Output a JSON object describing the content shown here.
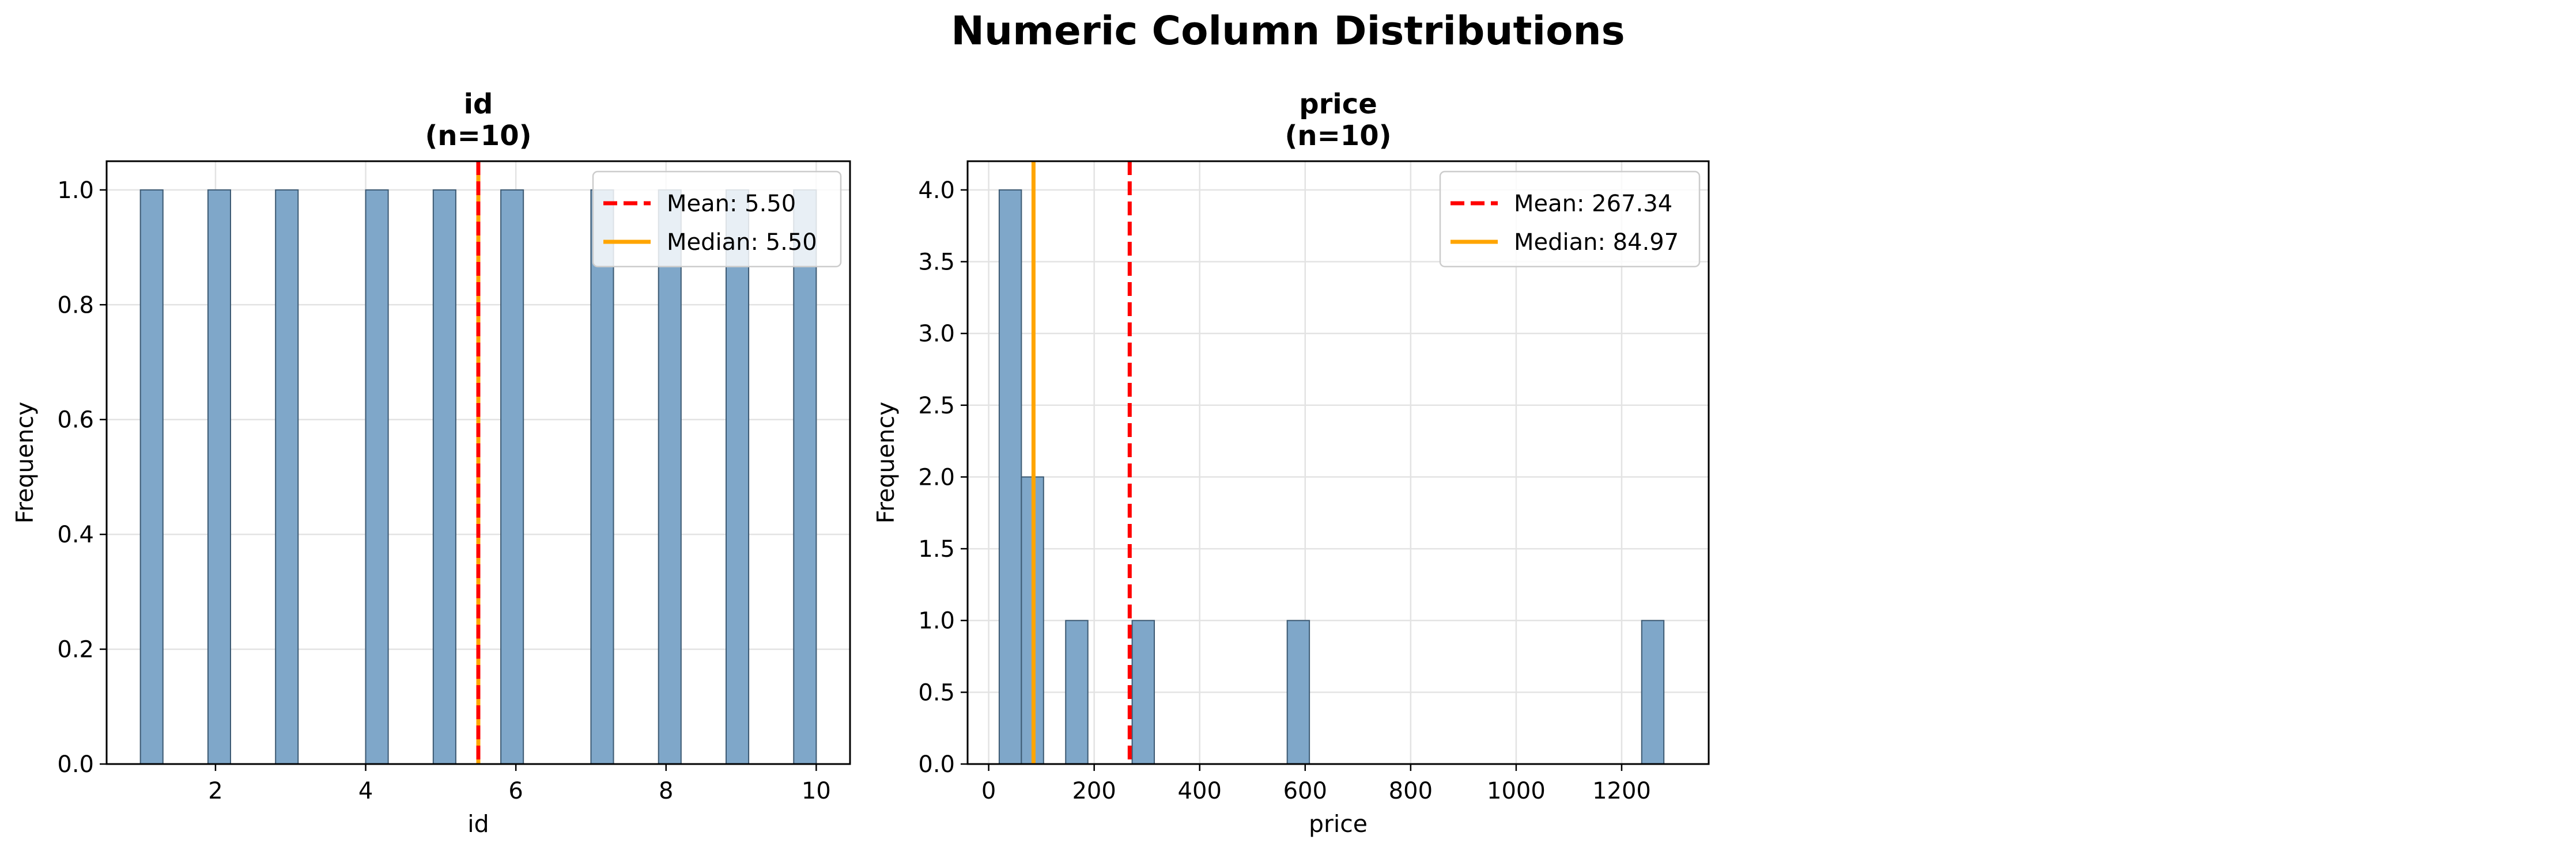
{
  "figure": {
    "title": "Numeric Column Distributions",
    "colors": {
      "bar": "#7fa7c9",
      "bar_edge": "#3d5a73",
      "mean": "#ff0000",
      "median": "#ffa500",
      "grid": "#e3e3e3"
    }
  },
  "chart_data": [
    {
      "type": "bar",
      "title_line1": "id",
      "title_line2": "(n=10)",
      "xlabel": "id",
      "ylabel": "Frequency",
      "grid": true,
      "legend_position": "top-right",
      "xlim": [
        0.55,
        10.45
      ],
      "ylim": [
        0,
        1.05
      ],
      "xticks": [
        2,
        4,
        6,
        8,
        10
      ],
      "xtick_labels": [
        "2",
        "4",
        "6",
        "8",
        "10"
      ],
      "yticks": [
        0.0,
        0.2,
        0.4,
        0.6,
        0.8,
        1.0
      ],
      "ytick_labels": [
        "0.0",
        "0.2",
        "0.4",
        "0.6",
        "0.8",
        "1.0"
      ],
      "bin_width": 0.3,
      "bins": [
        {
          "start": 1.0,
          "count": 1
        },
        {
          "start": 1.9,
          "count": 1
        },
        {
          "start": 2.8,
          "count": 1
        },
        {
          "start": 4.0,
          "count": 1
        },
        {
          "start": 4.9,
          "count": 1
        },
        {
          "start": 5.8,
          "count": 1
        },
        {
          "start": 7.0,
          "count": 1
        },
        {
          "start": 7.9,
          "count": 1
        },
        {
          "start": 8.8,
          "count": 1
        },
        {
          "start": 9.7,
          "count": 1
        }
      ],
      "mean": 5.5,
      "median": 5.5,
      "legend": [
        {
          "key": "mean",
          "label": "Mean: 5.50"
        },
        {
          "key": "median",
          "label": "Median: 5.50"
        }
      ]
    },
    {
      "type": "bar",
      "title_line1": "price",
      "title_line2": "(n=10)",
      "xlabel": "price",
      "ylabel": "Frequency",
      "grid": true,
      "legend_position": "top-right",
      "xlim": [
        -40,
        1365
      ],
      "ylim": [
        0,
        4.2
      ],
      "xticks": [
        0,
        200,
        400,
        600,
        800,
        1000,
        1200
      ],
      "xtick_labels": [
        "0",
        "200",
        "400",
        "600",
        "800",
        "1000",
        "1200"
      ],
      "yticks": [
        0.0,
        0.5,
        1.0,
        1.5,
        2.0,
        2.5,
        3.0,
        3.5,
        4.0
      ],
      "ytick_labels": [
        "0.0",
        "0.5",
        "1.0",
        "1.5",
        "2.0",
        "2.5",
        "3.0",
        "3.5",
        "4.0"
      ],
      "bin_width": 42,
      "bins": [
        {
          "start": 20,
          "count": 4
        },
        {
          "start": 62,
          "count": 2
        },
        {
          "start": 146,
          "count": 1
        },
        {
          "start": 272,
          "count": 1
        },
        {
          "start": 566,
          "count": 1
        },
        {
          "start": 1238,
          "count": 1
        }
      ],
      "mean": 267.34,
      "median": 84.97,
      "legend": [
        {
          "key": "mean",
          "label": "Mean: 267.34"
        },
        {
          "key": "median",
          "label": "Median: 84.97"
        }
      ]
    }
  ]
}
